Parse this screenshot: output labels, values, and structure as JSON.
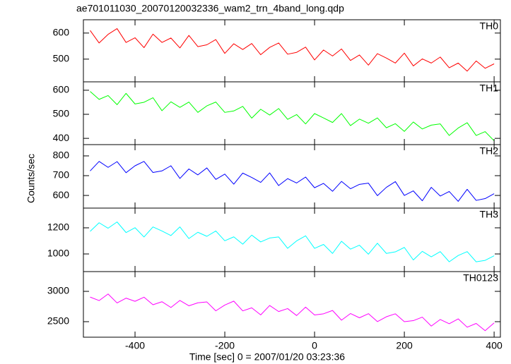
{
  "chart_data": [
    {
      "type": "line",
      "title": "ae701011030_20070120032336_wam2_trn_4band_long.qdp",
      "x": [
        -500,
        -480,
        -460,
        -440,
        -420,
        -400,
        -380,
        -360,
        -340,
        -320,
        -300,
        -280,
        -260,
        -240,
        -220,
        -200,
        -180,
        -160,
        -140,
        -120,
        -100,
        -80,
        -60,
        -40,
        -20,
        0,
        20,
        40,
        60,
        80,
        100,
        120,
        140,
        160,
        180,
        200,
        220,
        240,
        260,
        280,
        300,
        320,
        340,
        360,
        380,
        400
      ],
      "series": [
        {
          "name": "TH0",
          "color": "#ff0000",
          "values": [
            610,
            562,
            595,
            617,
            564,
            582,
            544,
            596,
            564,
            581,
            543,
            591,
            548,
            555,
            575,
            522,
            559,
            537,
            560,
            517,
            545,
            562,
            519,
            526,
            546,
            497,
            535,
            512,
            539,
            495,
            516,
            477,
            521,
            504,
            485,
            523,
            474,
            501,
            485,
            508,
            467,
            485,
            454,
            493,
            465,
            482
          ]
        }
      ],
      "ylim": [
        413,
        651
      ],
      "yticks": [
        500,
        600
      ]
    },
    {
      "type": "line",
      "x": [
        -500,
        -480,
        -460,
        -440,
        -420,
        -400,
        -380,
        -360,
        -340,
        -320,
        -300,
        -280,
        -260,
        -240,
        -220,
        -200,
        -180,
        -160,
        -140,
        -120,
        -100,
        -80,
        -60,
        -40,
        -20,
        0,
        20,
        40,
        60,
        80,
        100,
        120,
        140,
        160,
        180,
        200,
        220,
        240,
        260,
        280,
        300,
        320,
        340,
        360,
        380,
        400
      ],
      "series": [
        {
          "name": "TH1",
          "color": "#00ff00",
          "values": [
            595,
            562,
            578,
            540,
            587,
            543,
            550,
            569,
            515,
            552,
            529,
            551,
            508,
            535,
            551,
            508,
            514,
            533,
            484,
            521,
            497,
            524,
            479,
            499,
            460,
            503,
            485,
            466,
            503,
            453,
            480,
            463,
            485,
            444,
            461,
            429,
            468,
            439,
            455,
            460,
            412,
            443,
            465,
            412,
            428,
            390
          ]
        }
      ],
      "ylim": [
        374,
        635
      ],
      "yticks": [
        400,
        500,
        600
      ]
    },
    {
      "type": "line",
      "ylabel": "Counts/sec",
      "x": [
        -500,
        -480,
        -460,
        -440,
        -420,
        -400,
        -380,
        -360,
        -340,
        -320,
        -300,
        -280,
        -260,
        -240,
        -220,
        -200,
        -180,
        -160,
        -140,
        -120,
        -100,
        -80,
        -60,
        -40,
        -20,
        0,
        20,
        40,
        60,
        80,
        100,
        120,
        140,
        160,
        180,
        200,
        220,
        240,
        260,
        280,
        300,
        320,
        340,
        360,
        380,
        400
      ],
      "series": [
        {
          "name": "TH2",
          "color": "#0000ff",
          "values": [
            724,
            772,
            742,
            771,
            715,
            750,
            772,
            716,
            724,
            750,
            686,
            734,
            704,
            739,
            681,
            708,
            657,
            713,
            691,
            666,
            714,
            650,
            685,
            663,
            693,
            639,
            661,
            621,
            671,
            634,
            656,
            662,
            599,
            641,
            670,
            600,
            623,
            573,
            641,
            597,
            620,
            570,
            631,
            575,
            584,
            609
          ]
        }
      ],
      "ylim": [
        536,
        857
      ],
      "yticks": [
        600,
        700,
        800
      ]
    },
    {
      "type": "line",
      "x": [
        -500,
        -480,
        -460,
        -440,
        -420,
        -400,
        -380,
        -360,
        -340,
        -320,
        -300,
        -280,
        -260,
        -240,
        -220,
        -200,
        -180,
        -160,
        -140,
        -120,
        -100,
        -80,
        -60,
        -40,
        -20,
        0,
        20,
        40,
        60,
        80,
        100,
        120,
        140,
        160,
        180,
        200,
        220,
        240,
        260,
        280,
        300,
        320,
        340,
        360,
        380,
        400
      ],
      "series": [
        {
          "name": "TH3",
          "color": "#00ffff",
          "values": [
            1173,
            1239,
            1197,
            1245,
            1164,
            1201,
            1130,
            1207,
            1176,
            1141,
            1207,
            1118,
            1166,
            1135,
            1176,
            1101,
            1131,
            1075,
            1144,
            1092,
            1122,
            1130,
            1043,
            1100,
            1139,
            1043,
            1073,
            1004,
            1097,
            1037,
            1067,
            998,
            1082,
            1004,
            1016,
            1050,
            954,
            1020,
            978,
            1018,
            940,
            988,
            1018,
            940,
            951,
            986
          ]
        }
      ],
      "ylim": [
        865,
        1351
      ],
      "yticks": [
        1000,
        1200
      ]
    },
    {
      "type": "line",
      "xlabel": "Time [sec] 0 = 2007/01/20 03:23:36",
      "x": [
        -500,
        -480,
        -460,
        -440,
        -420,
        -400,
        -380,
        -360,
        -340,
        -320,
        -300,
        -280,
        -260,
        -240,
        -220,
        -200,
        -180,
        -160,
        -140,
        -120,
        -100,
        -80,
        -60,
        -40,
        -20,
        0,
        20,
        40,
        60,
        80,
        100,
        120,
        140,
        160,
        180,
        200,
        220,
        240,
        260,
        280,
        300,
        320,
        340,
        360,
        380,
        400
      ],
      "series": [
        {
          "name": "TH0123",
          "color": "#ff00ff",
          "values": [
            2906,
            2848,
            2957,
            2809,
            2888,
            2836,
            2904,
            2779,
            2829,
            2734,
            2850,
            2762,
            2811,
            2825,
            2679,
            2774,
            2839,
            2678,
            2728,
            2612,
            2767,
            2667,
            2716,
            2601,
            2740,
            2610,
            2630,
            2685,
            2525,
            2634,
            2564,
            2632,
            2501,
            2581,
            2630,
            2500,
            2517,
            2575,
            2427,
            2536,
            2466,
            2546,
            2409,
            2471,
            2352,
            2480
          ]
        }
      ],
      "ylim": [
        2244,
        3326
      ],
      "yticks": [
        2500,
        3000
      ],
      "xlim": [
        -515,
        414
      ],
      "xticks": [
        -400,
        -200,
        0,
        200,
        400
      ]
    }
  ]
}
